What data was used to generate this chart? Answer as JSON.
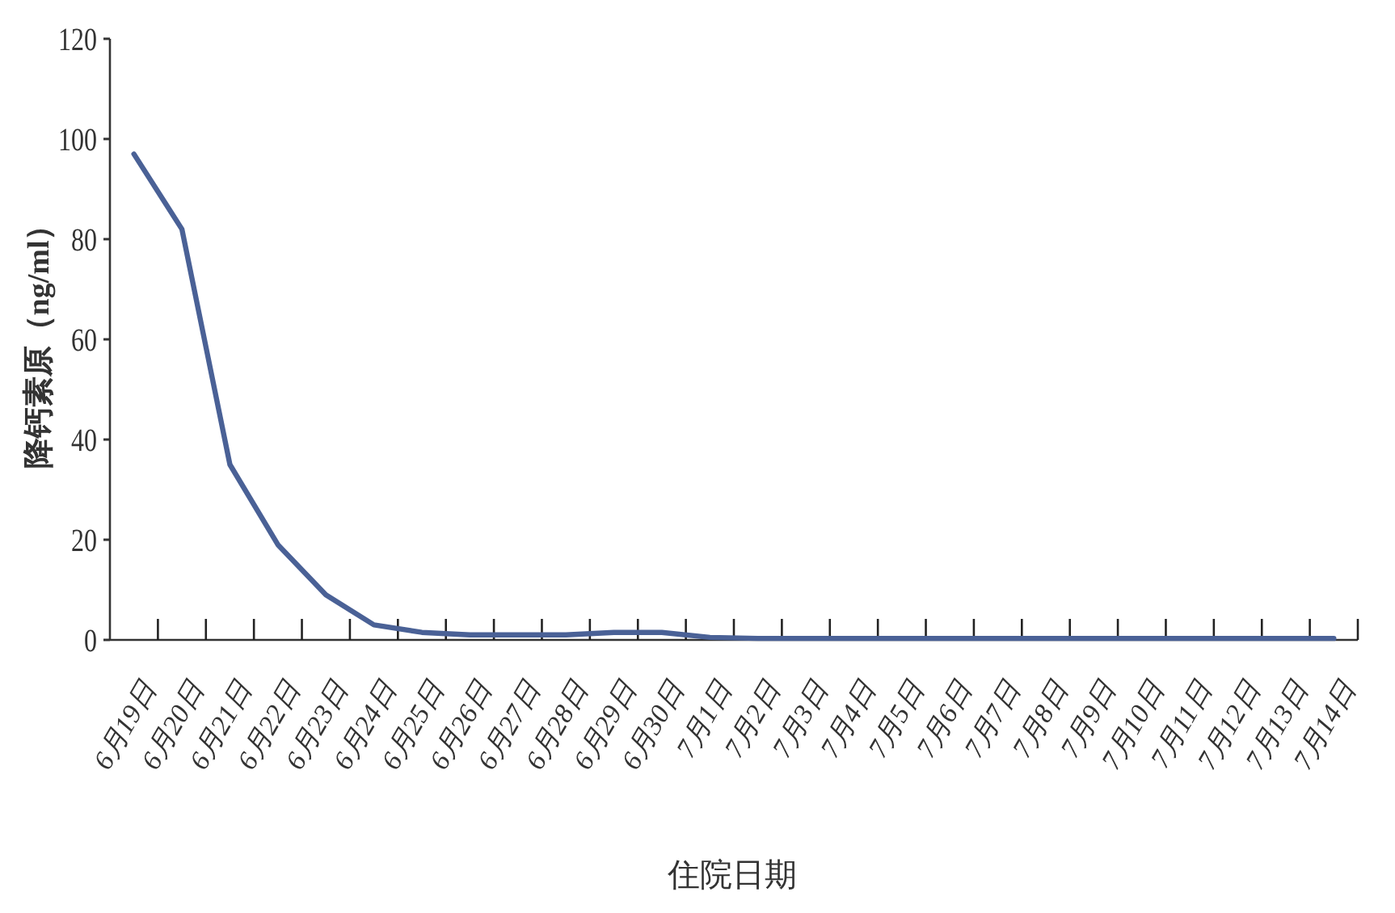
{
  "chart_data": {
    "type": "line",
    "xlabel": "住院日期",
    "ylabel": "降钙素原（ng/ml）",
    "categories": [
      "6月19日",
      "6月20日",
      "6月21日",
      "6月22日",
      "6月23日",
      "6月24日",
      "6月25日",
      "6月26日",
      "6月27日",
      "6月28日",
      "6月29日",
      "6月30日",
      "7月1日",
      "7月2日",
      "7月3日",
      "7月4日",
      "7月5日",
      "7月6日",
      "7月7日",
      "7月8日",
      "7月9日",
      "7月10日",
      "7月11日",
      "7月12日",
      "7月13日",
      "7月14日"
    ],
    "values": [
      97,
      82,
      35,
      19,
      9,
      3,
      1.5,
      1,
      1,
      1,
      1.5,
      1.5,
      0.5,
      0.3,
      0.3,
      0.3,
      0.3,
      0.3,
      0.3,
      0.3,
      0.3,
      0.3,
      0.3,
      0.3,
      0.3,
      0.3
    ],
    "color": "#4a6196",
    "ylim": [
      0,
      120
    ],
    "yticks": [
      0,
      20,
      40,
      60,
      80,
      100,
      120
    ],
    "marker": "none",
    "line_style": "solid"
  }
}
